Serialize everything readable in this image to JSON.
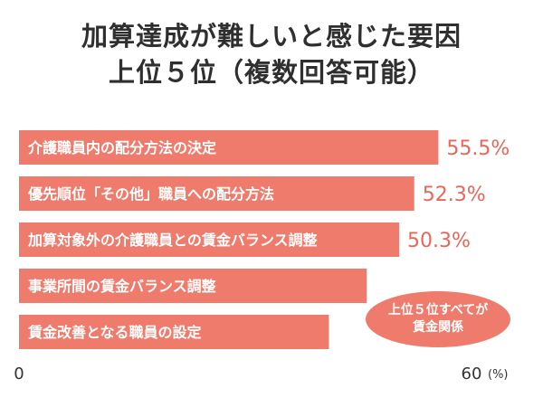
{
  "title": {
    "line1": "加算達成が難しいと感じた要因",
    "line2": "上位５位（複数回答可能）"
  },
  "colors": {
    "bar": "#ee7b6c",
    "value_text": "#e8665a",
    "note_bg": "#ee7b6c"
  },
  "note": {
    "line1": "上位５位すべてが",
    "line2": "賃金関係"
  },
  "chart_data": {
    "type": "bar",
    "orientation": "horizontal",
    "categories": [
      "介護職員内の配分方法の決定",
      "優先順位「その他」職員への配分方法",
      "加算対象外の介護職員との賃金バランス調整",
      "事業所間の賃金バランス調整",
      "賃金改善となる職員の設定"
    ],
    "values": [
      55.5,
      52.3,
      50.3,
      46.0,
      41.0
    ],
    "value_labels": [
      "55.5%",
      "52.3%",
      "50.3%",
      "",
      ""
    ],
    "xlim": [
      0,
      60
    ],
    "tick_labels": [
      "0",
      "60"
    ],
    "unit": "(%)",
    "grid": false
  }
}
